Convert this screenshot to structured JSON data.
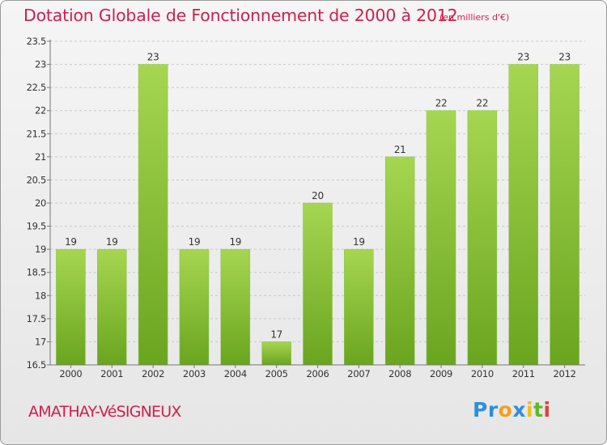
{
  "chart_data": {
    "type": "bar",
    "title": "Dotation Globale de Fonctionnement de 2000 à 2012",
    "subtitle": "(en milliers d'€)",
    "categories": [
      "2000",
      "2001",
      "2002",
      "2003",
      "2004",
      "2005",
      "2006",
      "2007",
      "2008",
      "2009",
      "2010",
      "2011",
      "2012"
    ],
    "values": [
      19,
      19,
      23,
      19,
      19,
      17,
      20,
      19,
      21,
      22,
      22,
      23,
      23
    ],
    "value_labels": [
      "19",
      "19",
      "23",
      "19",
      "19",
      "17",
      "20",
      "19",
      "21",
      "22",
      "22",
      "23",
      "23"
    ],
    "ylim": [
      16.5,
      23.5
    ],
    "yticks": [
      16.5,
      17,
      17.5,
      18,
      18.5,
      19,
      19.5,
      20,
      20.5,
      21,
      21.5,
      22,
      22.5,
      23,
      23.5
    ],
    "ytick_labels": [
      "16.5",
      "17",
      "17.5",
      "18",
      "18.5",
      "19",
      "19.5",
      "20",
      "20.5",
      "21",
      "21.5",
      "22",
      "22.5",
      "23",
      "23.5"
    ],
    "grid": "horizontal dashed",
    "colors": {
      "bar_light": "#a6d651",
      "bar_dark": "#6aa51f",
      "text": "#cf1f4c",
      "axis": "#555555"
    }
  },
  "footer": {
    "commune": "AMATHAY-VéSIGNEUX",
    "logo": {
      "text": "Proxiti",
      "letters": [
        {
          "ch": "P",
          "color": "#2f8fd8"
        },
        {
          "ch": "r",
          "color": "#2f8fd8"
        },
        {
          "ch": "o",
          "color": "#f0a020"
        },
        {
          "ch": "x",
          "color": "#2f8fd8"
        },
        {
          "ch": "i",
          "color": "#e8c020"
        },
        {
          "ch": "t",
          "color": "#5db82b"
        },
        {
          "ch": "i",
          "color": "#e04040"
        }
      ]
    }
  }
}
